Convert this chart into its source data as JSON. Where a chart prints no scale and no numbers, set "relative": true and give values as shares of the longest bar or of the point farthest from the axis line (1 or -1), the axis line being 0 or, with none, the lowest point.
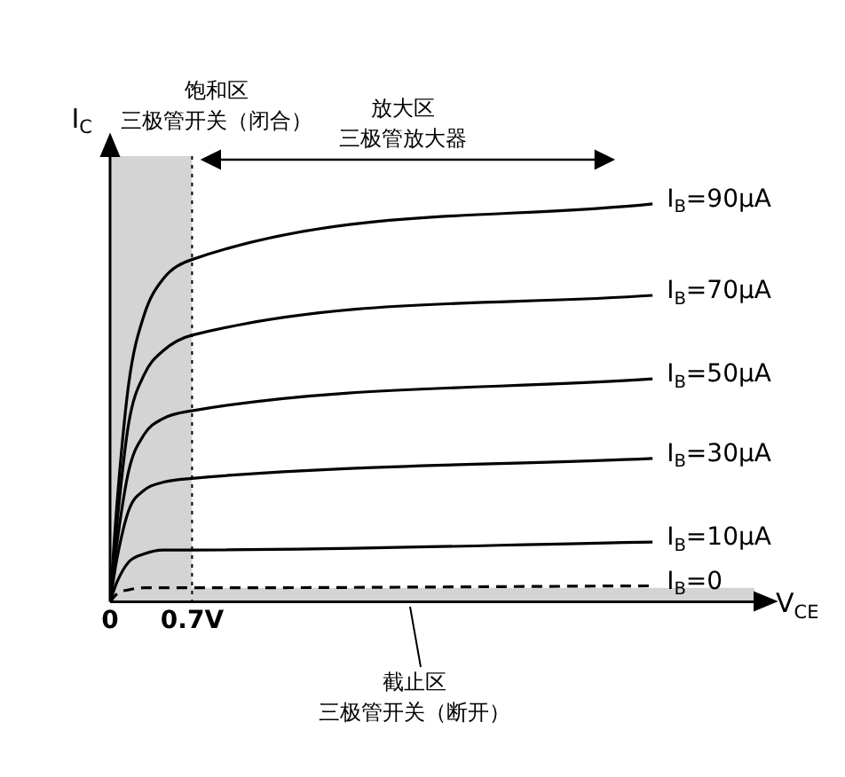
{
  "chart_data": {
    "type": "line",
    "relative": true,
    "xlabel": "V$_{CE}$",
    "ylabel": "I$_{C}$",
    "x": [
      0,
      0.06,
      0.16,
      0.29,
      0.45,
      0.7,
      4.63
    ],
    "xlim": [
      0,
      5.5
    ],
    "xticks": [
      0,
      {
        "value": 0.7,
        "label": "0.7V"
      }
    ],
    "marker": "none",
    "line_style": "solid",
    "grid": false,
    "legend": false,
    "series": [
      {
        "name": "I$_{B}$=90μA",
        "color": "#000000",
        "values": [
          0,
          0.25,
          0.55,
          0.72,
          0.81,
          0.86,
          1
        ]
      },
      {
        "name": "I$_{B}$=70μA",
        "color": "#000000",
        "values": [
          0,
          0.2,
          0.45,
          0.57,
          0.63,
          0.67,
          0.77
        ]
      },
      {
        "name": "I$_{B}$=50μA",
        "color": "#000000",
        "values": [
          0,
          0.15,
          0.33,
          0.42,
          0.46,
          0.48,
          0.56
        ]
      },
      {
        "name": "I$_{B}$=30μA",
        "color": "#000000",
        "values": [
          0,
          0.11,
          0.23,
          0.28,
          0.3,
          0.31,
          0.36
        ]
      },
      {
        "name": "I$_{B}$=10μA",
        "color": "#000000",
        "values": [
          0,
          0.05,
          0.1,
          0.12,
          0.13,
          0.13,
          0.15
        ]
      },
      {
        "name": "I$_{B}$=0",
        "color": "#000000",
        "line_style": "dashed",
        "values": [
          0,
          0.02,
          0.03,
          0.035,
          0.035,
          0.035,
          0.04
        ]
      }
    ],
    "ref_lines": [
      {
        "axis": "x",
        "value": 0.7,
        "line_style": "dotted"
      }
    ],
    "bands": [
      {
        "axis": "x",
        "from": 0,
        "to": 0.7,
        "label": "饱和区",
        "color": "#d4d4d4"
      },
      {
        "axis": "y",
        "from": 0,
        "to": 0.035,
        "label": "截止区",
        "color": "#d4d4d4"
      }
    ],
    "annotations": [
      "三极管开关（闭合）",
      "放大区",
      "三极管放大器",
      "三极管开关（断开）"
    ]
  }
}
